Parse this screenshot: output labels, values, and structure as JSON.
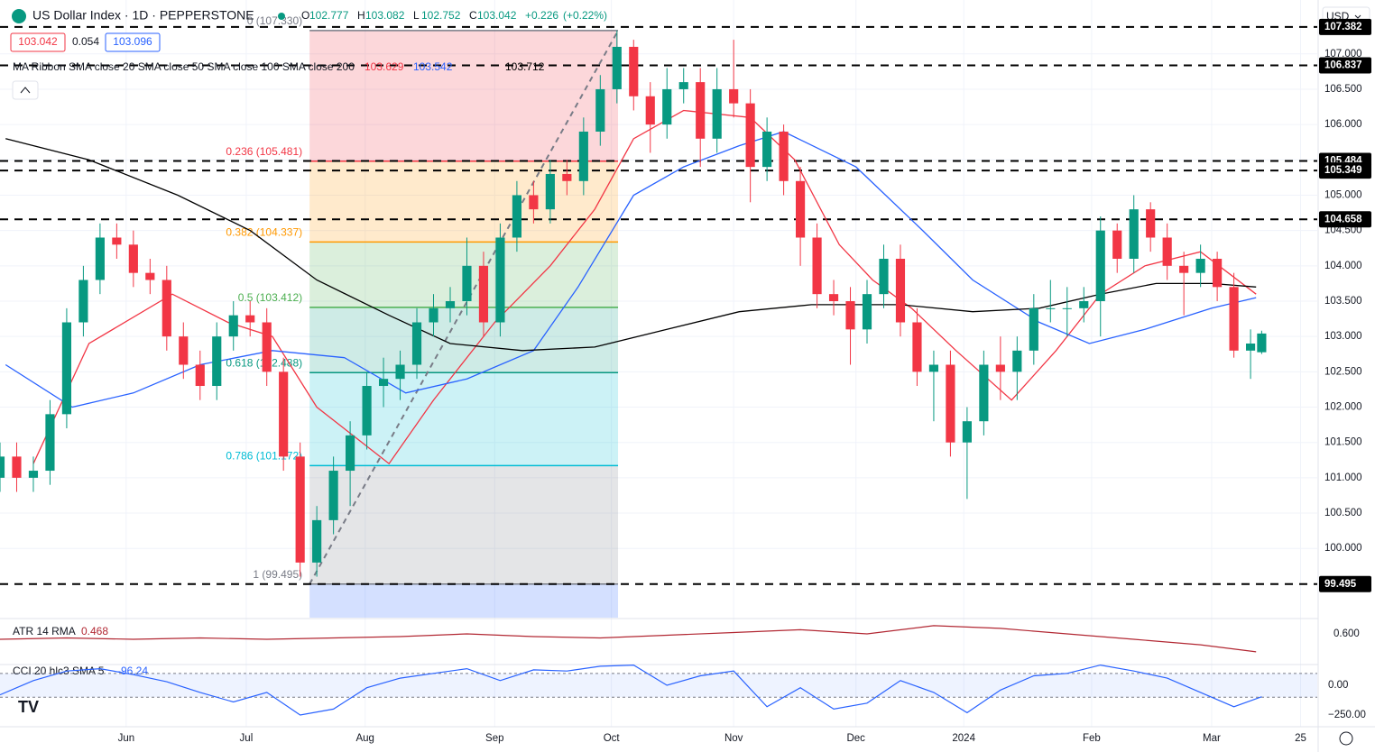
{
  "chart_data": {
    "type": "candlestick",
    "symbol": "US Dollar Index · 1D · PEPPERSTONE",
    "ohlc_letters": [
      "O",
      "H",
      "L",
      "C"
    ],
    "ohlc_values": [
      102.777,
      103.082,
      102.752,
      103.042
    ],
    "change": "+0.226",
    "change_pct": "(+0.22%)",
    "sell": 103.042,
    "spread": 0.054,
    "buy": 103.096,
    "currency": "USD",
    "up_color": "#089981",
    "down_color": "#f23645",
    "xlim": [
      0,
      237
    ],
    "xticks": [
      {
        "value": 22.7,
        "label": "Jun"
      },
      {
        "value": 44.3,
        "label": "Jul"
      },
      {
        "value": 65.7,
        "label": "Aug"
      },
      {
        "value": 89,
        "label": "Sep"
      },
      {
        "value": 110,
        "label": "Oct"
      },
      {
        "value": 132,
        "label": "Nov"
      },
      {
        "value": 154,
        "label": "Dec"
      },
      {
        "value": 173.4,
        "label": "2024"
      },
      {
        "value": 196.4,
        "label": "Feb"
      },
      {
        "value": 218,
        "label": "Mar"
      },
      {
        "value": 234,
        "label": "25"
      }
    ],
    "ylim": [
      99.02,
      107.38
    ],
    "yticks": [
      {
        "value": 100,
        "label": "100.000"
      },
      {
        "value": 100.5,
        "label": "100.500"
      },
      {
        "value": 101,
        "label": "101.000"
      },
      {
        "value": 101.5,
        "label": "101.500"
      },
      {
        "value": 102,
        "label": "102.000"
      },
      {
        "value": 102.5,
        "label": "102.500"
      },
      {
        "value": 103,
        "label": "103.000"
      },
      {
        "value": 103.5,
        "label": "103.500"
      },
      {
        "value": 104,
        "label": "104.000"
      },
      {
        "value": 104.5,
        "label": "104.500"
      },
      {
        "value": 105,
        "label": "105.000"
      },
      {
        "value": 105.5,
        "label": "105.500"
      },
      {
        "value": 106,
        "label": "106.000"
      },
      {
        "value": 106.5,
        "label": "106.500"
      },
      {
        "value": 107,
        "label": "107.000"
      }
    ],
    "grid": true,
    "levels": [
      107.382,
      106.837,
      105.484,
      105.349,
      104.658,
      99.495
    ],
    "candles": [
      [
        0,
        101.0,
        101.5,
        100.8,
        101.3
      ],
      [
        3,
        101.3,
        101.5,
        100.8,
        101.0
      ],
      [
        6,
        101.0,
        101.3,
        100.8,
        101.1
      ],
      [
        9,
        101.1,
        102.1,
        100.9,
        101.9
      ],
      [
        12,
        101.9,
        103.4,
        101.7,
        103.2
      ],
      [
        15,
        103.2,
        104.0,
        103.0,
        103.8
      ],
      [
        18,
        103.8,
        104.6,
        103.6,
        104.4
      ],
      [
        21,
        104.4,
        104.6,
        104.1,
        104.3
      ],
      [
        24,
        104.3,
        104.5,
        103.7,
        103.9
      ],
      [
        27,
        103.9,
        104.1,
        103.6,
        103.8
      ],
      [
        30,
        103.8,
        104.0,
        102.8,
        103.0
      ],
      [
        33,
        103.0,
        103.2,
        102.4,
        102.6
      ],
      [
        36,
        102.6,
        102.8,
        102.1,
        102.3
      ],
      [
        39,
        102.3,
        103.2,
        102.1,
        103.0
      ],
      [
        42,
        103.0,
        103.5,
        102.8,
        103.3
      ],
      [
        45,
        103.3,
        103.5,
        103.0,
        103.2
      ],
      [
        48,
        103.2,
        103.4,
        102.3,
        102.5
      ],
      [
        51,
        102.5,
        102.7,
        101.1,
        101.3
      ],
      [
        54,
        101.3,
        101.5,
        99.6,
        99.8
      ],
      [
        57,
        99.8,
        100.6,
        99.6,
        100.4
      ],
      [
        60,
        100.4,
        101.3,
        100.2,
        101.1
      ],
      [
        63,
        101.1,
        101.8,
        100.6,
        101.6
      ],
      [
        66,
        101.6,
        102.5,
        101.4,
        102.3
      ],
      [
        69,
        102.3,
        102.7,
        102.0,
        102.4
      ],
      [
        72,
        102.4,
        102.8,
        102.1,
        102.6
      ],
      [
        75,
        102.6,
        103.4,
        102.4,
        103.2
      ],
      [
        78,
        103.2,
        103.6,
        103.0,
        103.4
      ],
      [
        81,
        103.4,
        103.7,
        103.2,
        103.5
      ],
      [
        84,
        103.5,
        104.4,
        103.3,
        104.0
      ],
      [
        87,
        104.0,
        104.2,
        103.0,
        103.2
      ],
      [
        90,
        103.2,
        104.6,
        103.0,
        104.4
      ],
      [
        93,
        104.4,
        105.2,
        104.2,
        105.0
      ],
      [
        96,
        105.0,
        105.2,
        104.6,
        104.8
      ],
      [
        99,
        104.8,
        105.5,
        104.6,
        105.3
      ],
      [
        102,
        105.3,
        105.5,
        105.0,
        105.2
      ],
      [
        105,
        105.2,
        106.1,
        105.0,
        105.9
      ],
      [
        108,
        105.9,
        106.7,
        105.7,
        106.5
      ],
      [
        111,
        106.5,
        107.33,
        106.3,
        107.1
      ],
      [
        114,
        107.1,
        107.2,
        106.2,
        106.4
      ],
      [
        117,
        106.4,
        106.6,
        105.6,
        106.0
      ],
      [
        120,
        106.0,
        106.8,
        105.8,
        106.5
      ],
      [
        123,
        106.5,
        106.8,
        106.3,
        106.6
      ],
      [
        126,
        106.6,
        106.8,
        105.4,
        105.8
      ],
      [
        129,
        105.8,
        106.8,
        105.6,
        106.5
      ],
      [
        132,
        106.5,
        107.2,
        106.1,
        106.3
      ],
      [
        135,
        106.3,
        106.5,
        104.9,
        105.4
      ],
      [
        138,
        105.4,
        106.1,
        105.2,
        105.9
      ],
      [
        141,
        105.9,
        106.0,
        105.0,
        105.2
      ],
      [
        144,
        105.2,
        105.4,
        104.0,
        104.4
      ],
      [
        147,
        104.4,
        104.6,
        103.4,
        103.6
      ],
      [
        150,
        103.6,
        103.8,
        103.3,
        103.5
      ],
      [
        153,
        103.5,
        103.7,
        102.6,
        103.1
      ],
      [
        156,
        103.1,
        103.8,
        102.9,
        103.6
      ],
      [
        159,
        103.6,
        104.3,
        103.4,
        104.1
      ],
      [
        162,
        104.1,
        104.3,
        103.0,
        103.2
      ],
      [
        165,
        103.2,
        103.4,
        102.3,
        102.5
      ],
      [
        168,
        102.5,
        102.8,
        101.8,
        102.6
      ],
      [
        171,
        102.6,
        102.8,
        101.3,
        101.5
      ],
      [
        174,
        101.5,
        102.0,
        100.7,
        101.8
      ],
      [
        177,
        101.8,
        102.8,
        101.6,
        102.6
      ],
      [
        180,
        102.6,
        103.0,
        102.1,
        102.5
      ],
      [
        183,
        102.5,
        103.0,
        102.1,
        102.8
      ],
      [
        186,
        102.8,
        103.6,
        102.6,
        103.4
      ],
      [
        189,
        103.4,
        103.8,
        103.2,
        103.4
      ],
      [
        192,
        103.4,
        103.7,
        103.0,
        103.4
      ],
      [
        195,
        103.4,
        103.7,
        103.2,
        103.5
      ],
      [
        198,
        103.5,
        104.7,
        103.0,
        104.5
      ],
      [
        201,
        104.5,
        104.6,
        103.9,
        104.1
      ],
      [
        204,
        104.1,
        105.0,
        103.9,
        104.8
      ],
      [
        207,
        104.8,
        104.9,
        104.2,
        104.4
      ],
      [
        210,
        104.4,
        104.6,
        103.8,
        104.0
      ],
      [
        213,
        104.0,
        104.2,
        103.3,
        103.9
      ],
      [
        216,
        103.9,
        104.3,
        103.7,
        104.1
      ],
      [
        219,
        104.1,
        104.2,
        103.5,
        103.7
      ],
      [
        222,
        103.7,
        103.9,
        102.7,
        102.8
      ],
      [
        225,
        102.8,
        103.1,
        102.4,
        102.9
      ],
      [
        227,
        102.777,
        103.082,
        102.752,
        103.042
      ]
    ],
    "ribbon": {
      "label": "MA Ribbon SMA close 20 SMA close 50 SMA close 100 SMA close 200",
      "values": [
        103.629,
        103.542,
        103.712
      ],
      "colors": [
        "#f23645",
        "#2962ff",
        "#000000"
      ]
    },
    "series": [
      {
        "color": "#f23645",
        "x": [
          6,
          16,
          31,
          41,
          49,
          57,
          70,
          78,
          89,
          99,
          107,
          114,
          123,
          135,
          143,
          151,
          157,
          164,
          172,
          182,
          190,
          198,
          206,
          216,
          226
        ],
        "values": [
          101.2,
          102.9,
          103.6,
          103.2,
          103.0,
          102.0,
          101.2,
          102.1,
          103.2,
          104.0,
          104.8,
          105.8,
          106.2,
          106.1,
          105.5,
          104.3,
          103.8,
          103.4,
          102.8,
          102.1,
          102.8,
          103.6,
          104.0,
          104.2,
          103.6
        ]
      },
      {
        "color": "#2962ff",
        "x": [
          1,
          13,
          24,
          36,
          49,
          62,
          73,
          84,
          96,
          104,
          114,
          123,
          133,
          141,
          154,
          166,
          175,
          187,
          196,
          206,
          218,
          226
        ],
        "values": [
          102.6,
          102.0,
          102.2,
          102.6,
          102.8,
          102.7,
          102.2,
          102.4,
          102.8,
          103.7,
          105.0,
          105.4,
          105.7,
          105.9,
          105.4,
          104.5,
          103.8,
          103.2,
          102.9,
          103.1,
          103.4,
          103.55
        ]
      },
      {
        "color": "#000000",
        "x": [
          1,
          16,
          32,
          45,
          57,
          70,
          81,
          94,
          107,
          120,
          133,
          146,
          162,
          175,
          187,
          198,
          208,
          218,
          226
        ],
        "values": [
          105.8,
          105.5,
          105.0,
          104.5,
          103.8,
          103.3,
          102.9,
          102.8,
          102.85,
          103.1,
          103.35,
          103.45,
          103.45,
          103.35,
          103.4,
          103.6,
          103.75,
          103.75,
          103.7
        ]
      }
    ],
    "fib": {
      "x": [
        55.7,
        111.2
      ],
      "below_color": "#2962ff",
      "levels": [
        {
          "label": "0 (107.330)",
          "value": 107.33,
          "color": "#787b86"
        },
        {
          "label": "0.236 (105.481)",
          "value": 105.481,
          "color": "#f23645"
        },
        {
          "label": "0.382 (104.337)",
          "value": 104.337,
          "color": "#ff9800"
        },
        {
          "label": "0.5 (103.412)",
          "value": 103.412,
          "color": "#4caf50"
        },
        {
          "label": "0.618 (102.488)",
          "value": 102.488,
          "color": "#089981"
        },
        {
          "label": "0.786 (101.172)",
          "value": 101.172,
          "color": "#00bcd4"
        },
        {
          "label": "1 (99.495)",
          "value": 99.495,
          "color": "#787b86"
        }
      ]
    },
    "atr": {
      "label": "ATR 14 RMA",
      "last": 0.468,
      "color": "#b22833",
      "ylim": [
        0.388,
        0.699
      ],
      "yticks": [
        {
          "value": 0.6,
          "label": "0.600"
        }
      ],
      "x": [
        0,
        12,
        24,
        36,
        48,
        60,
        72,
        84,
        96,
        108,
        120,
        132,
        144,
        156,
        168,
        180,
        192,
        204,
        216,
        226
      ],
      "values": [
        0.56,
        0.57,
        0.56,
        0.57,
        0.56,
        0.57,
        0.58,
        0.6,
        0.58,
        0.57,
        0.59,
        0.61,
        0.63,
        0.6,
        0.66,
        0.64,
        0.6,
        0.56,
        0.52,
        0.468
      ]
    },
    "cci": {
      "label": "CCI 20 hlc3 SMA 5",
      "last": -96.24,
      "color": "#2962ff",
      "ylim": [
        -341,
        167
      ],
      "band": [
        -100,
        100
      ],
      "yticks": [
        {
          "value": 0,
          "label": "0.00"
        },
        {
          "value": -250,
          "label": "−250.00"
        }
      ],
      "x": [
        0,
        6,
        12,
        18,
        24,
        30,
        36,
        42,
        48,
        54,
        60,
        66,
        72,
        78,
        84,
        90,
        96,
        102,
        108,
        114,
        120,
        126,
        132,
        138,
        144,
        150,
        156,
        162,
        168,
        174,
        180,
        186,
        192,
        198,
        204,
        210,
        216,
        222,
        227
      ],
      "values": [
        -80,
        40,
        120,
        140,
        90,
        30,
        -60,
        -140,
        -60,
        -250,
        -200,
        -20,
        60,
        100,
        140,
        40,
        130,
        120,
        160,
        170,
        0,
        80,
        120,
        -180,
        -20,
        -200,
        -150,
        40,
        -60,
        -230,
        -40,
        80,
        100,
        170,
        120,
        60,
        -60,
        -180,
        -96.24
      ]
    }
  }
}
